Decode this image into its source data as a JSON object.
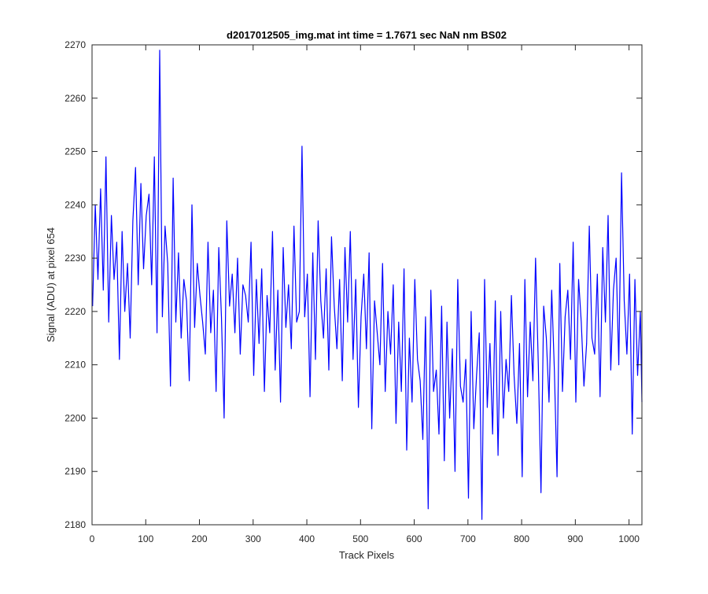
{
  "chart_data": {
    "type": "line",
    "title": "d2017012505_img.mat int time = 1.7671 sec  NaN nm BS02",
    "xlabel": "Track Pixels",
    "ylabel": "Signal (ADU) at pixel 654",
    "xlim": [
      0,
      1024
    ],
    "ylim": [
      2180,
      2270
    ],
    "xticks": [
      "0",
      "100",
      "200",
      "300",
      "400",
      "500",
      "600",
      "700",
      "800",
      "900",
      "1000"
    ],
    "yticks": [
      "2180",
      "2190",
      "2200",
      "2210",
      "2220",
      "2230",
      "2240",
      "2250",
      "2260",
      "2270"
    ],
    "grid": false,
    "box": true,
    "series_color": "#0000ff",
    "series": [
      {
        "x": [
          1,
          6,
          11,
          16,
          21,
          26,
          31,
          36,
          41,
          46,
          51,
          56,
          61,
          66,
          71,
          76,
          81,
          86,
          91,
          96,
          101,
          106,
          111,
          116,
          121,
          126,
          131,
          136,
          141,
          146,
          151,
          156,
          161,
          166,
          171,
          176,
          181,
          186,
          191,
          196,
          201,
          206,
          211,
          216,
          221,
          226,
          231,
          236,
          241,
          246,
          251,
          256,
          261,
          266,
          271,
          276,
          281,
          286,
          291,
          296,
          301,
          306,
          311,
          316,
          321,
          326,
          331,
          336,
          341,
          346,
          351,
          356,
          361,
          366,
          371,
          376,
          381,
          386,
          391,
          396,
          401,
          406,
          411,
          416,
          421,
          426,
          431,
          436,
          441,
          446,
          451,
          456,
          461,
          466,
          471,
          476,
          481,
          486,
          491,
          496,
          501,
          506,
          511,
          516,
          521,
          526,
          531,
          536,
          541,
          546,
          551,
          556,
          561,
          566,
          571,
          576,
          581,
          586,
          591,
          596,
          601,
          606,
          611,
          616,
          621,
          626,
          631,
          636,
          641,
          646,
          651,
          656,
          661,
          666,
          671,
          676,
          681,
          686,
          691,
          696,
          701,
          706,
          711,
          716,
          721,
          726,
          731,
          736,
          741,
          746,
          751,
          756,
          761,
          766,
          771,
          776,
          781,
          786,
          791,
          796,
          801,
          806,
          811,
          816,
          821,
          826,
          831,
          836,
          841,
          846,
          851,
          856,
          861,
          866,
          871,
          876,
          881,
          886,
          891,
          896,
          901,
          906,
          911,
          916,
          921,
          926,
          931,
          936,
          941,
          946,
          951,
          956,
          961,
          966,
          971,
          976,
          981,
          986,
          991,
          996,
          1001,
          1006,
          1011,
          1016,
          1021,
          1024
        ],
        "values": [
          2221,
          2240,
          2226,
          2243,
          2224,
          2249,
          2218,
          2238,
          2226,
          2233,
          2211,
          2235,
          2220,
          2229,
          2215,
          2237,
          2247,
          2225,
          2244,
          2228,
          2238,
          2242,
          2225,
          2249,
          2216,
          2269,
          2219,
          2236,
          2229,
          2206,
          2245,
          2218,
          2231,
          2215,
          2226,
          2222,
          2207,
          2240,
          2217,
          2229,
          2223,
          2218,
          2212,
          2233,
          2216,
          2224,
          2205,
          2232,
          2219,
          2200,
          2237,
          2221,
          2227,
          2216,
          2230,
          2212,
          2225,
          2223,
          2218,
          2233,
          2208,
          2226,
          2214,
          2228,
          2205,
          2223,
          2216,
          2235,
          2209,
          2224,
          2203,
          2232,
          2217,
          2225,
          2213,
          2236,
          2218,
          2220,
          2251,
          2219,
          2227,
          2204,
          2231,
          2211,
          2237,
          2222,
          2215,
          2228,
          2209,
          2234,
          2221,
          2213,
          2226,
          2207,
          2232,
          2218,
          2235,
          2211,
          2226,
          2202,
          2219,
          2227,
          2213,
          2231,
          2198,
          2222,
          2216,
          2210,
          2229,
          2205,
          2220,
          2212,
          2225,
          2199,
          2218,
          2205,
          2228,
          2194,
          2215,
          2203,
          2226,
          2211,
          2207,
          2196,
          2219,
          2183,
          2224,
          2205,
          2209,
          2197,
          2221,
          2192,
          2218,
          2200,
          2213,
          2190,
          2226,
          2206,
          2203,
          2211,
          2185,
          2220,
          2198,
          2208,
          2216,
          2181,
          2226,
          2202,
          2214,
          2197,
          2222,
          2193,
          2220,
          2200,
          2211,
          2205,
          2223,
          2208,
          2199,
          2214,
          2189,
          2226,
          2204,
          2218,
          2207,
          2230,
          2210,
          2186,
          2221,
          2215,
          2203,
          2224,
          2209,
          2189,
          2229,
          2205,
          2219,
          2224,
          2211,
          2233,
          2203,
          2226,
          2218,
          2206,
          2214,
          2236,
          2215,
          2212,
          2227,
          2204,
          2232,
          2218,
          2238,
          2209,
          2224,
          2230,
          2210,
          2246,
          2222,
          2212,
          2227,
          2197,
          2226,
          2208,
          2220,
          2203
        ]
      }
    ]
  }
}
